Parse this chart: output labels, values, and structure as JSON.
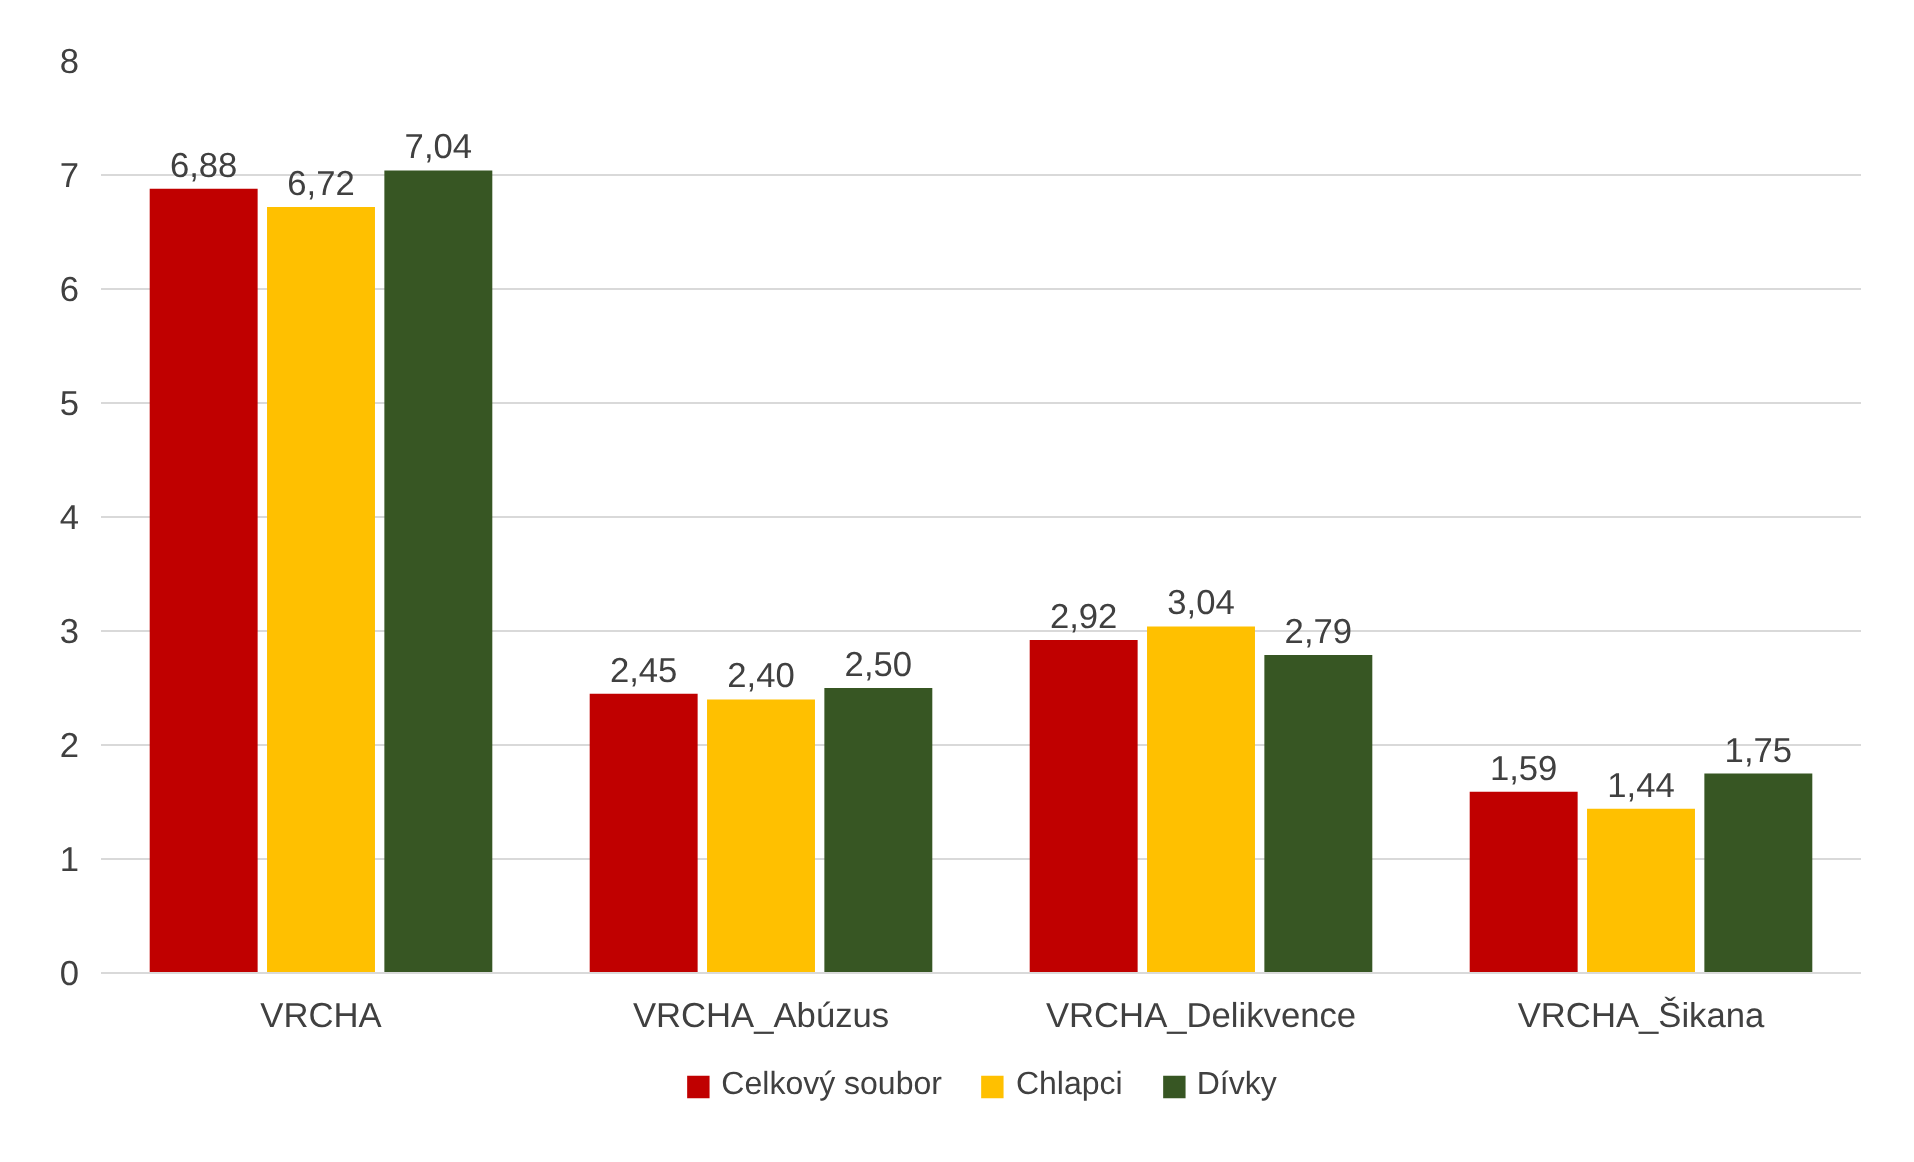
{
  "chart_data": {
    "type": "bar",
    "categories": [
      "VRCHA",
      "VRCHA_Abúzus",
      "VRCHA_Delikvence",
      "VRCHA_Šikana"
    ],
    "series": [
      {
        "name": "Celkový soubor",
        "color": "#c00000",
        "values": [
          6.88,
          2.45,
          2.92,
          1.59
        ],
        "value_labels": [
          "6,88",
          "2,45",
          "2,92",
          "1,59"
        ]
      },
      {
        "name": "Chlapci",
        "color": "#ffc000",
        "values": [
          6.72,
          2.4,
          3.04,
          1.44
        ],
        "value_labels": [
          "6,72",
          "2,40",
          "3,04",
          "1,44"
        ]
      },
      {
        "name": "Dívky",
        "color": "#375623",
        "values": [
          7.04,
          2.5,
          2.79,
          1.75
        ],
        "value_labels": [
          "7,04",
          "2,50",
          "2,79",
          "1,75"
        ]
      }
    ],
    "ylim": [
      0,
      8
    ],
    "yticks": [
      0,
      1,
      2,
      3,
      4,
      5,
      6,
      7,
      8
    ],
    "grid": "y",
    "legend": "bottom"
  }
}
